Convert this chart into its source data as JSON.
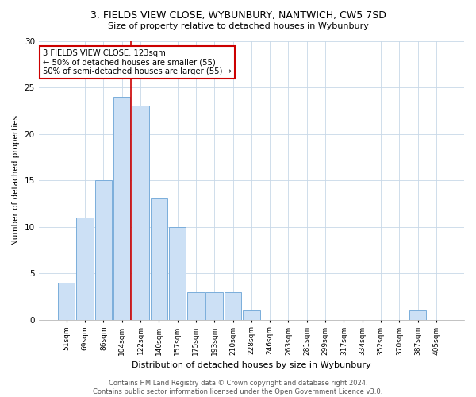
{
  "title": "3, FIELDS VIEW CLOSE, WYBUNBURY, NANTWICH, CW5 7SD",
  "subtitle": "Size of property relative to detached houses in Wybunbury",
  "xlabel": "Distribution of detached houses by size in Wybunbury",
  "ylabel": "Number of detached properties",
  "bins": [
    "51sqm",
    "69sqm",
    "86sqm",
    "104sqm",
    "122sqm",
    "140sqm",
    "157sqm",
    "175sqm",
    "193sqm",
    "210sqm",
    "228sqm",
    "246sqm",
    "263sqm",
    "281sqm",
    "299sqm",
    "317sqm",
    "334sqm",
    "352sqm",
    "370sqm",
    "387sqm",
    "405sqm"
  ],
  "values": [
    4,
    11,
    15,
    24,
    23,
    13,
    10,
    3,
    3,
    3,
    1,
    0,
    0,
    0,
    0,
    0,
    0,
    0,
    0,
    1,
    0
  ],
  "bar_color": "#cce0f5",
  "bar_edge_color": "#7aaddb",
  "vline_color": "#cc0000",
  "vline_pos": 3.5,
  "ylim": [
    0,
    30
  ],
  "yticks": [
    0,
    5,
    10,
    15,
    20,
    25,
    30
  ],
  "annotation_text": "3 FIELDS VIEW CLOSE: 123sqm\n← 50% of detached houses are smaller (55)\n50% of semi-detached houses are larger (55) →",
  "annotation_box_color": "#ffffff",
  "annotation_box_edge": "#cc0000",
  "footer1": "Contains HM Land Registry data © Crown copyright and database right 2024.",
  "footer2": "Contains public sector information licensed under the Open Government Licence v3.0."
}
